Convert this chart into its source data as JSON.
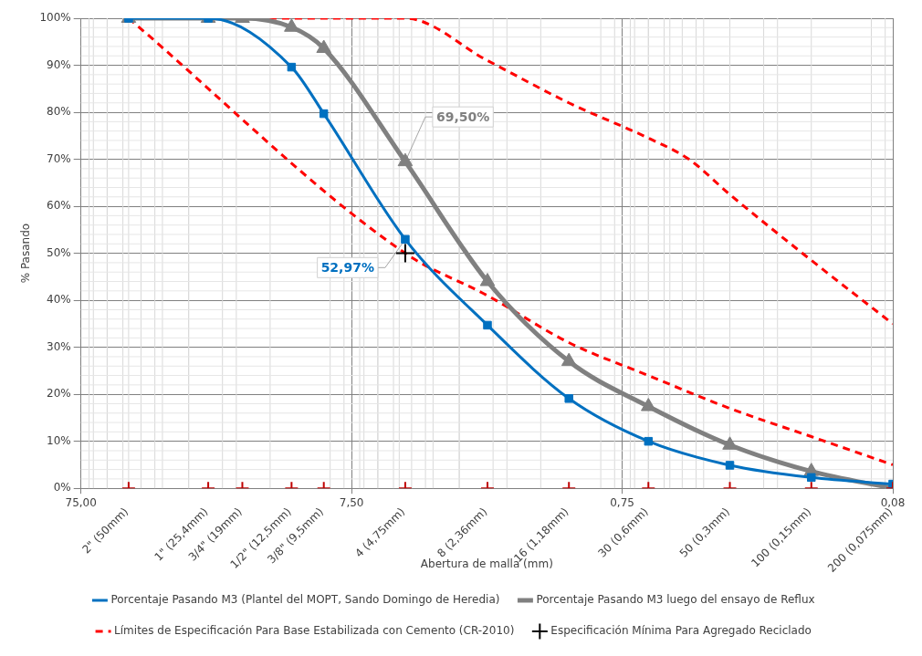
{
  "chart_data": {
    "type": "line",
    "xlabel": "Abertura de malla (mm)",
    "ylabel": "% Pasando",
    "log": "x",
    "xlim": [
      75,
      0.075
    ],
    "xticks": [
      {
        "value": 75,
        "label": "75,00"
      },
      {
        "value": 7.5,
        "label": "7,50"
      },
      {
        "value": 0.75,
        "label": "0,75"
      },
      {
        "value": 0.075,
        "label": "0,08"
      }
    ],
    "ylim": [
      0,
      100
    ],
    "yticks": [
      {
        "value": 0,
        "label": "0%"
      },
      {
        "value": 10,
        "label": "10%"
      },
      {
        "value": 20,
        "label": "20%"
      },
      {
        "value": 30,
        "label": "30%"
      },
      {
        "value": 40,
        "label": "40%"
      },
      {
        "value": 50,
        "label": "50%"
      },
      {
        "value": 60,
        "label": "60%"
      },
      {
        "value": 70,
        "label": "70%"
      },
      {
        "value": 80,
        "label": "80%"
      },
      {
        "value": 90,
        "label": "90%"
      },
      {
        "value": 100,
        "label": "100%"
      }
    ],
    "grid": true,
    "legend": "bottom",
    "series": [
      {
        "name": "Porcentaje Pasando M3 (Plantel del MOPT, Sando Domingo de Heredia)",
        "color": "#0070c0",
        "marker": "square",
        "line_style": "solid",
        "x": [
          50,
          25.4,
          12.5,
          9.5,
          4.75,
          2.36,
          1.18,
          0.6,
          0.3,
          0.15,
          0.075
        ],
        "values": [
          100,
          100,
          89.6,
          79.7,
          52.97,
          34.7,
          19.1,
          10,
          4.9,
          2.3,
          0.9
        ],
        "value_labels": [
          null,
          null,
          null,
          null,
          "52,97%",
          null,
          null,
          null,
          null,
          null,
          null
        ]
      },
      {
        "name": "Porcentaje Pasando M3 luego del ensayo de Reflux",
        "color": "#808080",
        "marker": "triangle",
        "line_style": "solid",
        "x": [
          50,
          25.4,
          19,
          12.5,
          9.5,
          4.75,
          2.36,
          1.18,
          0.6,
          0.3,
          0.15,
          0.075
        ],
        "values": [
          100,
          100,
          100,
          98.1,
          93.6,
          69.5,
          44,
          27,
          17.4,
          9.2,
          3.6,
          0
        ],
        "value_labels": [
          null,
          null,
          null,
          null,
          null,
          "69,50%",
          null,
          null,
          null,
          null,
          null,
          null
        ]
      },
      {
        "name": "Límites de Especificación Para Base Estabilizada con Cemento (CR-2010)",
        "color": "#ff0000",
        "marker": "none",
        "line_style": "dashed",
        "x": [
          50,
          4.75,
          2.36,
          1.18,
          0.6,
          0.425,
          0.3,
          0.15,
          0.075
        ],
        "values": [
          100,
          100,
          91,
          82,
          74.5,
          70,
          62.5,
          48.5,
          35
        ]
      },
      {
        "color": "#ff0000",
        "marker": "none",
        "line_style": "dashed",
        "x": [
          50,
          4.75,
          2.36,
          1.18,
          0.6,
          0.3,
          0.15,
          0.075
        ],
        "values": [
          100,
          50,
          41,
          31,
          24,
          17,
          11,
          5
        ]
      },
      {
        "name": "Especificación Mínima Para Agregado Reciclado",
        "type": "scatter",
        "color": "#000000",
        "marker": "cross",
        "x": [
          4.75
        ],
        "values": [
          50
        ]
      },
      {
        "type": "scatter",
        "color": "#c00000",
        "marker": "cross",
        "x": [
          50,
          25.4,
          19,
          12.5,
          9.5,
          4.75,
          2.36,
          1.18,
          0.6,
          0.3,
          0.15,
          0.075
        ],
        "values": [
          0,
          0,
          0,
          0,
          0,
          0,
          0,
          0,
          0,
          0,
          0,
          0
        ]
      }
    ],
    "annotations": [
      {
        "text": "2\" (50mm)",
        "x": 50,
        "y": 0
      },
      {
        "text": "1\" (25,4mm)",
        "x": 25.4,
        "y": 0
      },
      {
        "text": "3/4\" (19mm)",
        "x": 19,
        "y": 0
      },
      {
        "text": "1/2\" (12,5mm)",
        "x": 12.5,
        "y": 0
      },
      {
        "text": "3/8\" (9,5mm)",
        "x": 9.5,
        "y": 0
      },
      {
        "text": "4 (4,75mm)",
        "x": 4.75,
        "y": 0
      },
      {
        "text": "8 (2,36mm)",
        "x": 2.36,
        "y": 0
      },
      {
        "text": "16 (1,18mm)",
        "x": 1.18,
        "y": 0
      },
      {
        "text": "30 (0,6mm)",
        "x": 0.6,
        "y": 0
      },
      {
        "text": "50 (0,3mm)",
        "x": 0.3,
        "y": 0
      },
      {
        "text": "100 (0,15mm)",
        "x": 0.15,
        "y": 0
      },
      {
        "text": "200 (0,075mm)",
        "x": 0.075,
        "y": 0
      }
    ]
  }
}
